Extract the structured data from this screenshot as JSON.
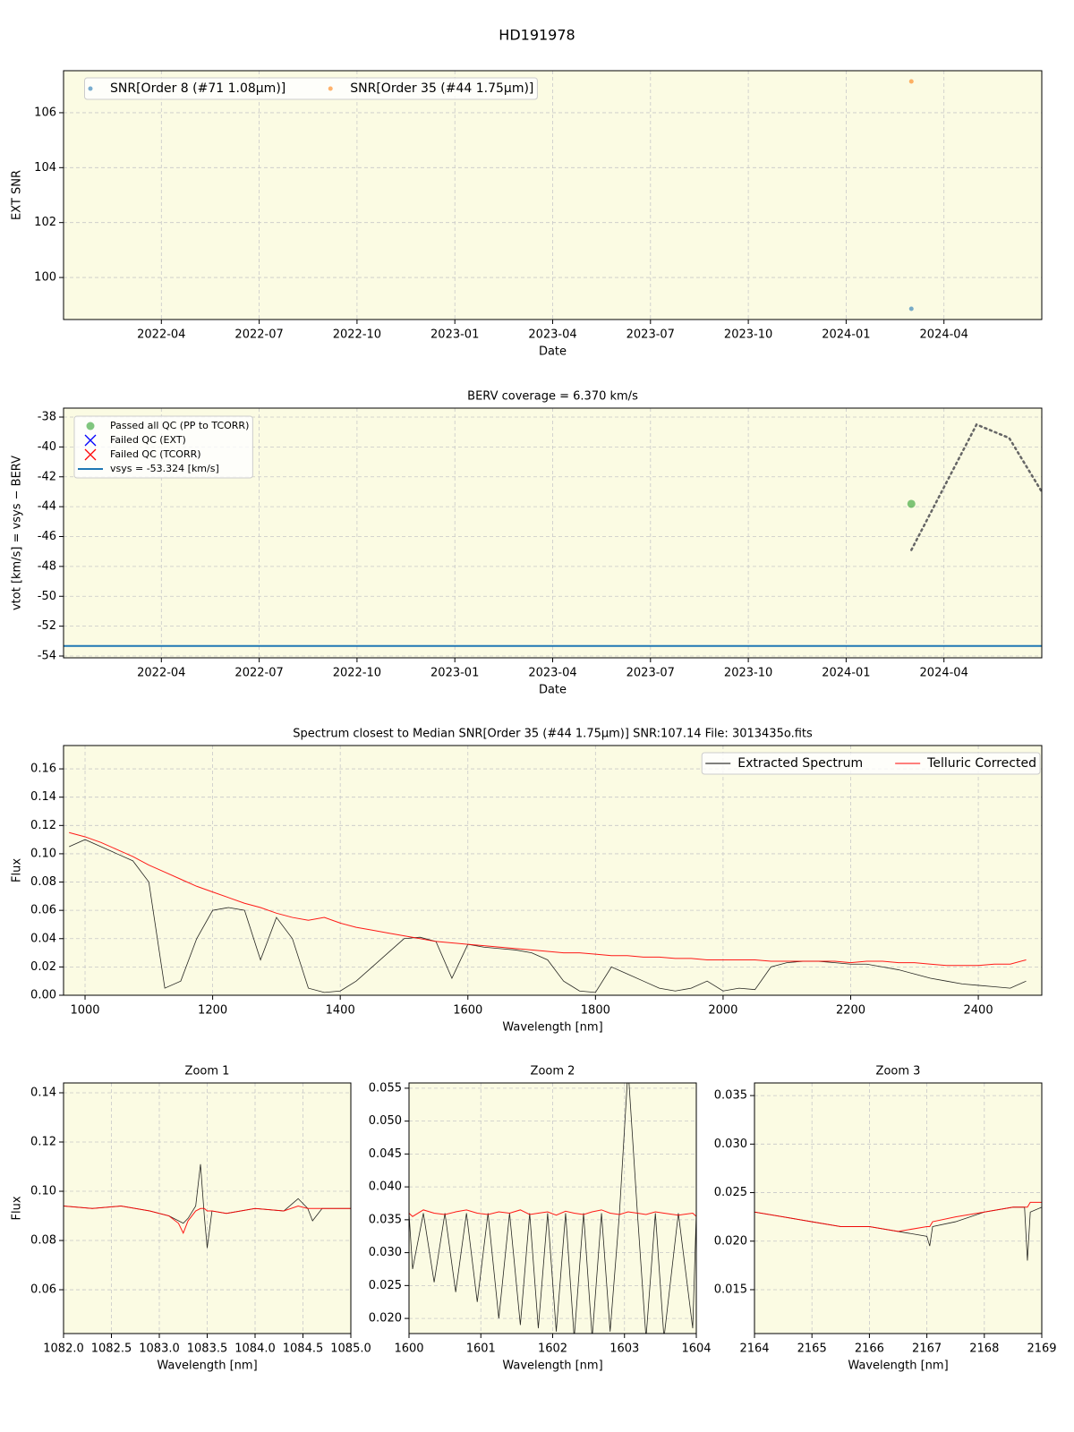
{
  "title": "HD191978",
  "chart_data": [
    {
      "type": "scatter",
      "xlabel": "Date",
      "ylabel": "EXT SNR",
      "xlim": [
        "2022-01",
        "2024-07"
      ],
      "ylim": [
        98.47,
        107.53
      ],
      "xticks": [
        "2022-04",
        "2022-07",
        "2022-10",
        "2023-01",
        "2023-04",
        "2023-07",
        "2023-10",
        "2024-01",
        "2024-04"
      ],
      "yticks": [
        100,
        102,
        104,
        106
      ],
      "grid": true,
      "background": "#fbfbe3",
      "legend": "upper left",
      "legend_ncol": 2,
      "series": [
        {
          "name": "SNR[Order 8 (#71 1.08μm)]",
          "color": "#1f77b4",
          "marker": "o",
          "x": [
            "2024-03"
          ],
          "values": [
            98.86
          ]
        },
        {
          "name": "SNR[Order 35 (#44 1.75μm)]",
          "color": "#ff7f0e",
          "marker": "o",
          "x": [
            "2024-03"
          ],
          "values": [
            107.14
          ]
        }
      ]
    },
    {
      "type": "scatter",
      "title": "BERV coverage = 6.370 km/s",
      "xlabel": "Date",
      "ylabel": "vtot [km/s] = vsys − BERV",
      "xlim": [
        "2022-01",
        "2024-07"
      ],
      "ylim": [
        -54.12,
        -37.4
      ],
      "xticks": [
        "2022-04",
        "2022-07",
        "2022-10",
        "2023-01",
        "2023-04",
        "2023-07",
        "2023-10",
        "2024-01",
        "2024-04"
      ],
      "yticks": [
        -54,
        -52,
        -50,
        -48,
        -46,
        -44,
        -42,
        -40,
        -38
      ],
      "grid": true,
      "background": "#fbfbe3",
      "legend": "upper left",
      "legend_ncol": 1,
      "series": [
        {
          "name": "Passed all QC (PP to TCORR)",
          "color": "#2ca02c",
          "marker": "o",
          "x": [
            "2024-03"
          ],
          "values": [
            -43.81
          ]
        },
        {
          "name": "Failed QC (EXT)",
          "color": "#0000ff",
          "marker": "x",
          "x": [],
          "values": []
        },
        {
          "name": "Failed QC (TCORR)",
          "color": "#ff0000",
          "marker": "x",
          "x": [],
          "values": []
        },
        {
          "name": "vsys = -53.324 [km/s]",
          "color": "#1f77b4",
          "marker": "hline",
          "values": [
            -53.324
          ]
        }
      ],
      "berv_curve": {
        "color": "#666666",
        "x": [
          "2024-03",
          "2024-04",
          "2024-05",
          "2024-06",
          "2024-07"
        ],
        "values": [
          -46.9,
          -42.7,
          -38.5,
          -39.4,
          -43.0
        ]
      }
    },
    {
      "type": "line",
      "title": "Spectrum closest to Median SNR[Order 35 (#44 1.75μm)]     SNR:107.14     File: 3013435o.fits",
      "xlabel": "Wavelength [nm]",
      "ylabel": "Flux",
      "xlim": [
        966.3,
        2499.5
      ],
      "ylim": [
        0,
        0.1765
      ],
      "xticks": [
        1000,
        1200,
        1400,
        1600,
        1800,
        2000,
        2200,
        2400
      ],
      "yticks": [
        {
          "value": 0,
          "label": "0.00"
        },
        0.02,
        0.04,
        0.06,
        0.08,
        {
          "value": 0.1,
          "label": "0.10"
        },
        0.12,
        0.14,
        0.16
      ],
      "grid": true,
      "background": "#fbfbe3",
      "legend": "upper right",
      "legend_ncol": 2,
      "x": [
        975,
        1000,
        1025,
        1050,
        1075,
        1100,
        1125,
        1150,
        1175,
        1200,
        1225,
        1250,
        1275,
        1300,
        1325,
        1350,
        1375,
        1400,
        1425,
        1450,
        1475,
        1500,
        1525,
        1550,
        1575,
        1600,
        1625,
        1650,
        1675,
        1700,
        1725,
        1750,
        1775,
        1800,
        1825,
        1850,
        1875,
        1900,
        1925,
        1950,
        1975,
        2000,
        2025,
        2050,
        2075,
        2100,
        2125,
        2150,
        2175,
        2200,
        2225,
        2250,
        2275,
        2300,
        2325,
        2350,
        2375,
        2400,
        2425,
        2450,
        2475
      ],
      "series": [
        {
          "name": "Extracted Spectrum",
          "color": "#000000",
          "values": [
            0.105,
            0.11,
            0.105,
            0.1,
            0.095,
            0.08,
            0.005,
            0.01,
            0.04,
            0.06,
            0.062,
            0.06,
            0.025,
            0.055,
            0.04,
            0.005,
            0.002,
            0.003,
            0.01,
            0.02,
            0.03,
            0.04,
            0.041,
            0.038,
            0.012,
            0.036,
            0.034,
            0.033,
            0.032,
            0.03,
            0.025,
            0.01,
            0.003,
            0.002,
            0.02,
            0.015,
            0.01,
            0.005,
            0.003,
            0.005,
            0.01,
            0.003,
            0.005,
            0.004,
            0.02,
            0.023,
            0.024,
            0.024,
            0.023,
            0.022,
            0.022,
            0.02,
            0.018,
            0.015,
            0.012,
            0.01,
            0.008,
            0.007,
            0.006,
            0.005,
            0.01
          ]
        },
        {
          "name": "Telluric Corrected",
          "color": "#ff0000",
          "values": [
            0.115,
            0.112,
            0.108,
            0.103,
            0.098,
            0.092,
            0.087,
            0.082,
            0.077,
            0.073,
            0.069,
            0.065,
            0.062,
            0.058,
            0.055,
            0.053,
            0.055,
            0.051,
            0.048,
            0.046,
            0.044,
            0.042,
            0.04,
            0.038,
            0.037,
            0.036,
            0.035,
            0.034,
            0.033,
            0.032,
            0.031,
            0.03,
            0.03,
            0.029,
            0.028,
            0.028,
            0.027,
            0.027,
            0.026,
            0.026,
            0.025,
            0.025,
            0.025,
            0.025,
            0.024,
            0.024,
            0.024,
            0.024,
            0.024,
            0.023,
            0.024,
            0.024,
            0.023,
            0.023,
            0.022,
            0.021,
            0.021,
            0.021,
            0.022,
            0.022,
            0.025
          ]
        }
      ]
    },
    {
      "type": "line",
      "title": "Zoom 1",
      "xlabel": "Wavelength [nm]",
      "ylabel": "Flux",
      "xlim": [
        1082,
        1085
      ],
      "ylim": [
        0.0422,
        0.144
      ],
      "xticks": [
        {
          "value": 1082,
          "label": "1082.0"
        },
        1082.5,
        {
          "value": 1083,
          "label": "1083.0"
        },
        1083.5,
        {
          "value": 1084,
          "label": "1084.0"
        },
        1084.5,
        {
          "value": 1085,
          "label": "1085.0"
        }
      ],
      "yticks": [
        0.06,
        0.08,
        {
          "value": 0.1,
          "label": "0.10"
        },
        0.12,
        0.14
      ],
      "grid": true,
      "background": "#fbfbe3",
      "x": [
        1082.0,
        1082.3,
        1082.6,
        1082.9,
        1083.1,
        1083.2,
        1083.25,
        1083.3,
        1083.38,
        1083.43,
        1083.47,
        1083.5,
        1083.55,
        1083.7,
        1084.0,
        1084.3,
        1084.45,
        1084.55,
        1084.6,
        1084.7,
        1085.0
      ],
      "series": [
        {
          "color": "#000000",
          "values": [
            0.094,
            0.093,
            0.094,
            0.092,
            0.09,
            0.088,
            0.087,
            0.089,
            0.094,
            0.111,
            0.09,
            0.077,
            0.092,
            0.091,
            0.093,
            0.092,
            0.097,
            0.093,
            0.088,
            0.093,
            0.093
          ]
        },
        {
          "color": "#ff0000",
          "values": [
            0.094,
            0.093,
            0.094,
            0.092,
            0.09,
            0.087,
            0.083,
            0.088,
            0.092,
            0.093,
            0.093,
            0.092,
            0.092,
            0.091,
            0.093,
            0.092,
            0.094,
            0.093,
            0.093,
            0.093,
            0.093
          ]
        }
      ]
    },
    {
      "type": "line",
      "title": "Zoom 2",
      "xlabel": "Wavelength [nm]",
      "xlim": [
        1600,
        1604
      ],
      "ylim": [
        0.0177,
        0.0558
      ],
      "xticks": [
        1600,
        1601,
        1602,
        1603,
        1604
      ],
      "yticks": [
        {
          "value": 0.02,
          "label": "0.020"
        },
        0.025,
        {
          "value": 0.03,
          "label": "0.030"
        },
        0.035,
        {
          "value": 0.04,
          "label": "0.040"
        },
        0.045,
        {
          "value": 0.05,
          "label": "0.050"
        },
        0.055
      ],
      "grid": true,
      "background": "#fbfbe3",
      "x": [
        1600,
        1600.05,
        1600.2,
        1600.35,
        1600.5,
        1600.65,
        1600.8,
        1600.95,
        1601.1,
        1601.25,
        1601.4,
        1601.55,
        1601.68,
        1601.8,
        1601.93,
        1602.05,
        1602.18,
        1602.3,
        1602.43,
        1602.55,
        1602.68,
        1602.8,
        1602.93,
        1603.05,
        1603.18,
        1603.3,
        1603.43,
        1603.55,
        1603.75,
        1603.95,
        1604
      ],
      "series": [
        {
          "color": "#000000",
          "values": [
            0.036,
            0.0275,
            0.036,
            0.0255,
            0.036,
            0.024,
            0.036,
            0.0225,
            0.036,
            0.02,
            0.036,
            0.019,
            0.036,
            0.0185,
            0.036,
            0.018,
            0.036,
            0.017,
            0.036,
            0.017,
            0.036,
            0.018,
            0.036,
            0.058,
            0.036,
            0.017,
            0.036,
            0.017,
            0.036,
            0.0185,
            0.036
          ]
        },
        {
          "color": "#ff0000",
          "values": [
            0.036,
            0.0355,
            0.0365,
            0.036,
            0.0358,
            0.0362,
            0.0365,
            0.036,
            0.0358,
            0.0362,
            0.036,
            0.0365,
            0.0358,
            0.036,
            0.0362,
            0.0357,
            0.0363,
            0.036,
            0.0358,
            0.0362,
            0.0365,
            0.036,
            0.0358,
            0.0362,
            0.036,
            0.0358,
            0.0362,
            0.036,
            0.0357,
            0.036,
            0.0355
          ]
        }
      ]
    },
    {
      "type": "line",
      "title": "Zoom 3",
      "xlabel": "Wavelength [nm]",
      "xlim": [
        2164,
        2169
      ],
      "ylim": [
        0.01048,
        0.0363
      ],
      "xticks": [
        2164,
        2165,
        2166,
        2167,
        2168,
        2169
      ],
      "yticks": [
        0.015,
        {
          "value": 0.02,
          "label": "0.020"
        },
        0.025,
        {
          "value": 0.03,
          "label": "0.030"
        },
        0.035
      ],
      "grid": true,
      "background": "#fbfbe3",
      "x": [
        2164,
        2164.5,
        2165,
        2165.5,
        2166,
        2166.5,
        2167,
        2167.05,
        2167.1,
        2167.5,
        2168,
        2168.5,
        2168.7,
        2168.75,
        2168.8,
        2169
      ],
      "series": [
        {
          "color": "#000000",
          "values": [
            0.023,
            0.0225,
            0.022,
            0.0215,
            0.0215,
            0.021,
            0.0205,
            0.0195,
            0.0215,
            0.022,
            0.023,
            0.0235,
            0.0235,
            0.018,
            0.023,
            0.0235
          ]
        },
        {
          "color": "#ff0000",
          "values": [
            0.023,
            0.0225,
            0.022,
            0.0215,
            0.0215,
            0.021,
            0.0215,
            0.0215,
            0.022,
            0.0225,
            0.023,
            0.0235,
            0.0235,
            0.0235,
            0.024,
            0.024
          ]
        }
      ]
    }
  ]
}
